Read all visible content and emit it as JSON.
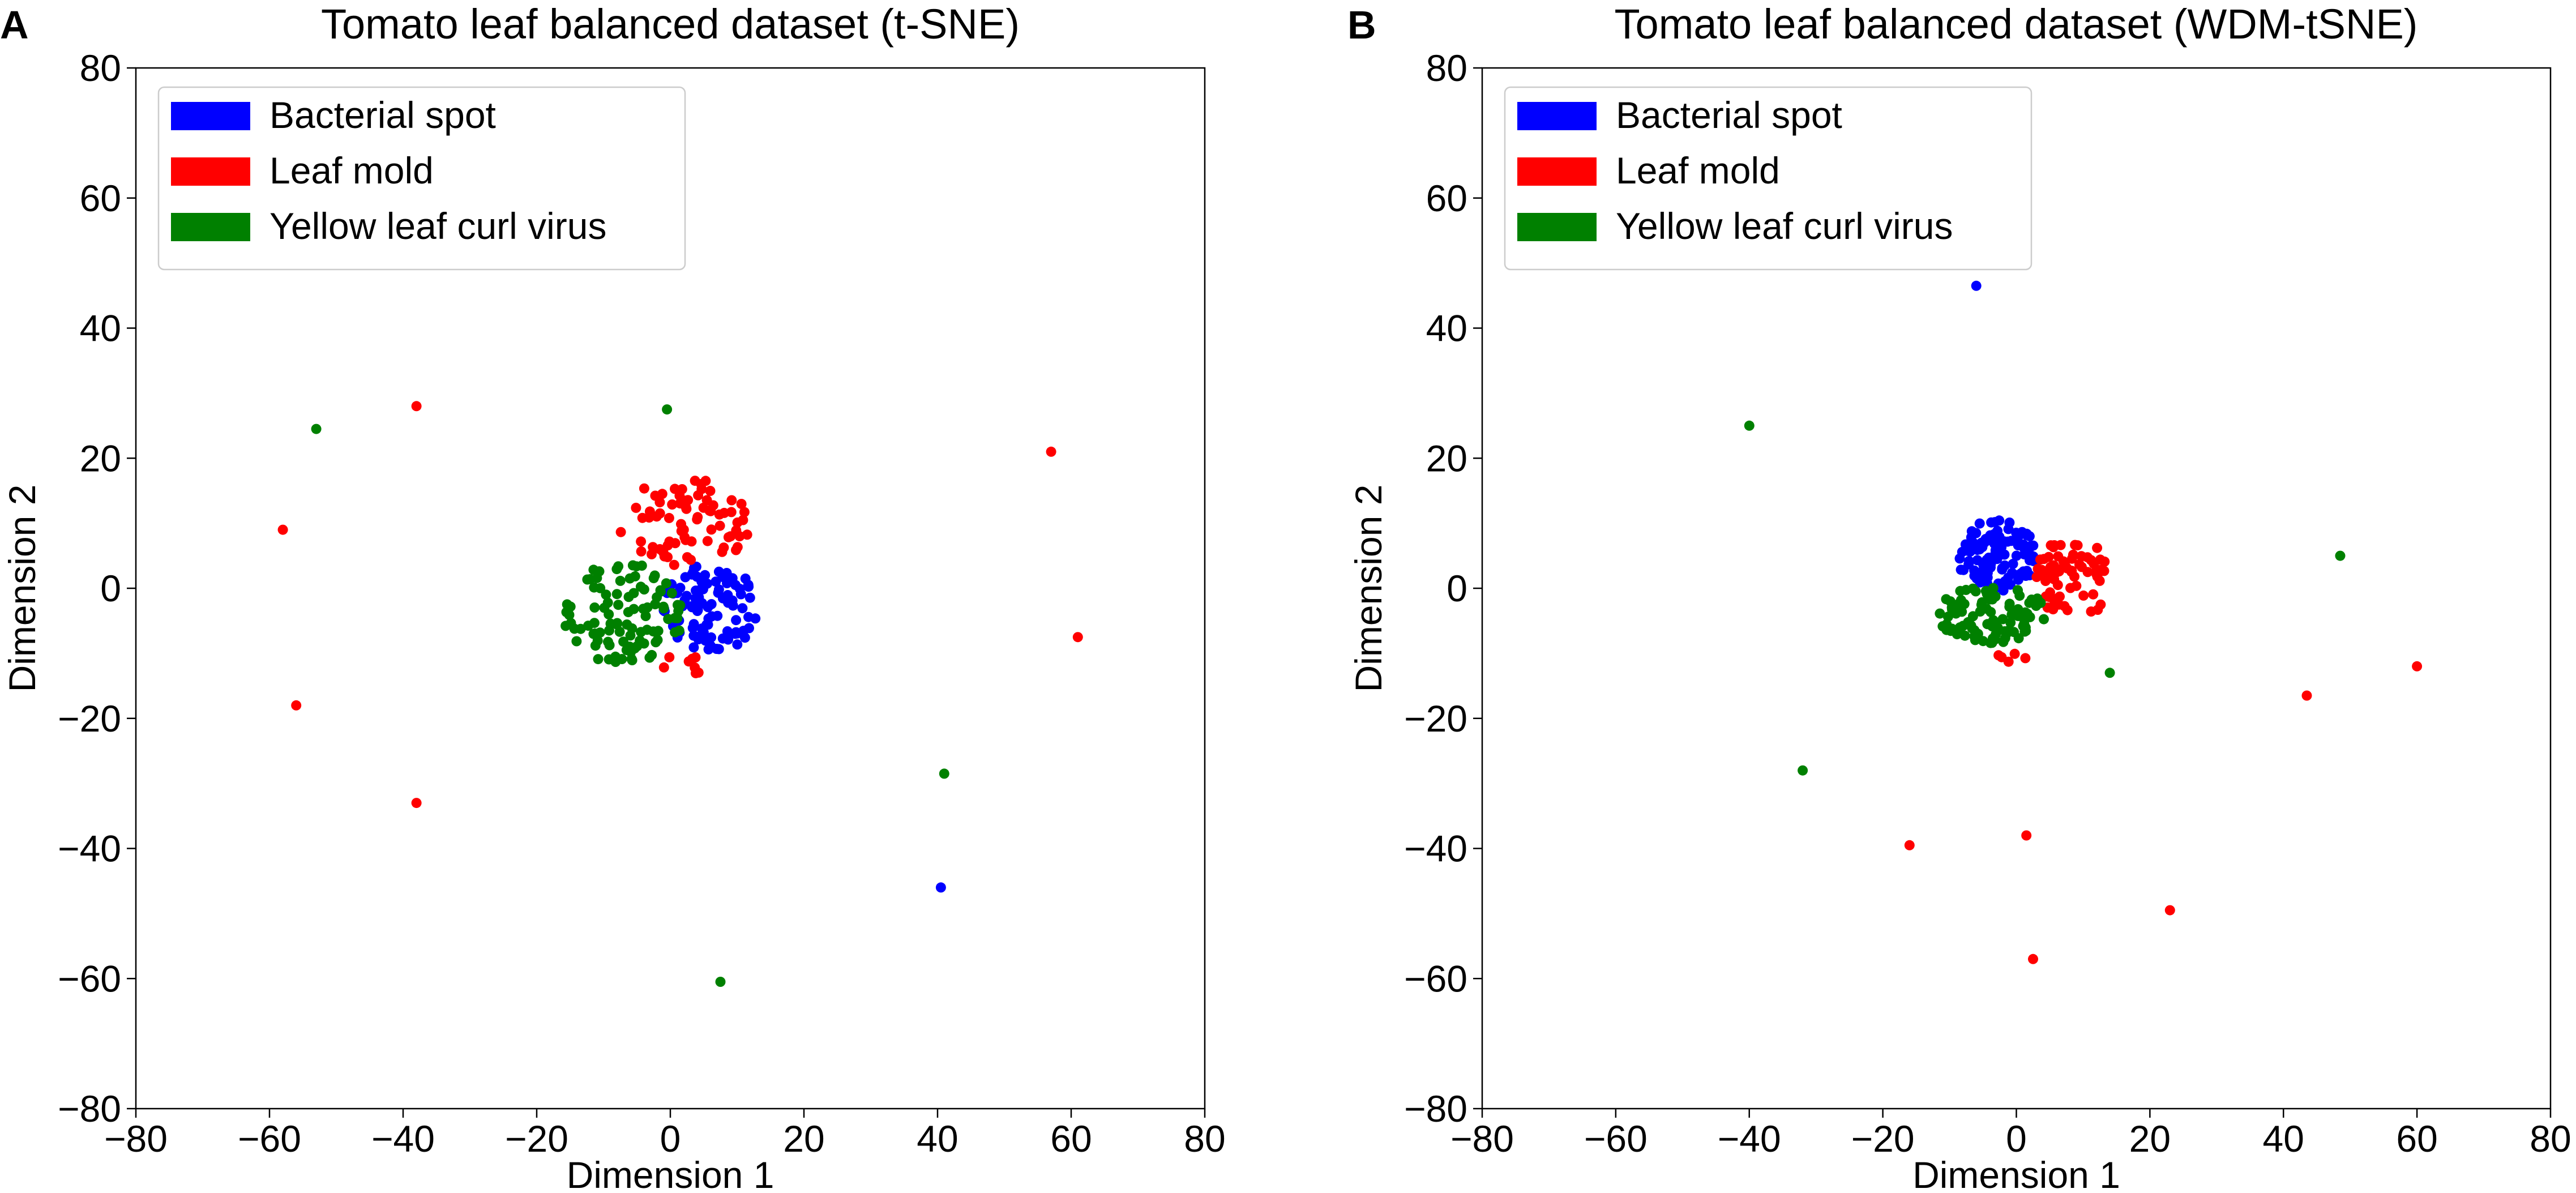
{
  "chart_data": [
    {
      "panel_letter": "A",
      "type": "scatter",
      "title": "Tomato leaf balanced dataset (t-SNE)",
      "xlabel": "Dimension 1",
      "ylabel": "Dimension 2",
      "xlim": [
        -80,
        80
      ],
      "ylim": [
        -80,
        80
      ],
      "xticks": [
        -80,
        -60,
        -40,
        -20,
        0,
        20,
        40,
        60,
        80
      ],
      "yticks": [
        -80,
        -60,
        -40,
        -20,
        0,
        20,
        40,
        60,
        80
      ],
      "tick_labels": [
        "−80",
        "−60",
        "−40",
        "−20",
        "0",
        "20",
        "40",
        "60",
        "80"
      ],
      "grid": false,
      "legend_position": "top-left",
      "series": [
        {
          "name": "Bacterial spot",
          "color": "#0000ff",
          "clusters": [
            {
              "cx": 6,
              "cy": -3,
              "rx": 7,
              "ry": 7,
              "n": 95
            }
          ],
          "outliers": [
            [
              40.5,
              -46
            ]
          ]
        },
        {
          "name": "Leaf mold",
          "color": "#ff0000",
          "clusters": [
            {
              "cx": 2,
              "cy": 10,
              "rx": 10,
              "ry": 7,
              "n": 75
            },
            {
              "cx": 2,
              "cy": -12,
              "rx": 3,
              "ry": 2,
              "n": 8
            }
          ],
          "outliers": [
            [
              -38,
              28
            ],
            [
              -58,
              9
            ],
            [
              -56,
              -18
            ],
            [
              -38,
              -33
            ],
            [
              57,
              21
            ],
            [
              61,
              -7.5
            ]
          ]
        },
        {
          "name": "Yellow leaf curl virus",
          "color": "#008000",
          "clusters": [
            {
              "cx": -7,
              "cy": -4,
              "rx": 9,
              "ry": 8,
              "n": 100
            }
          ],
          "outliers": [
            [
              -53,
              24.5
            ],
            [
              -0.5,
              27.5
            ],
            [
              41,
              -28.5
            ],
            [
              7.5,
              -60.5
            ]
          ]
        }
      ]
    },
    {
      "panel_letter": "B",
      "type": "scatter",
      "title": "Tomato leaf balanced dataset (WDM-tSNE)",
      "xlabel": "Dimension 1",
      "ylabel": "Dimension 2",
      "xlim": [
        -80,
        80
      ],
      "ylim": [
        -80,
        80
      ],
      "xticks": [
        -80,
        -60,
        -40,
        -20,
        0,
        20,
        40,
        60,
        80
      ],
      "yticks": [
        -80,
        -60,
        -40,
        -20,
        0,
        20,
        40,
        60,
        80
      ],
      "tick_labels": [
        "−80",
        "−60",
        "−40",
        "−20",
        "0",
        "20",
        "40",
        "60",
        "80"
      ],
      "grid": false,
      "legend_position": "top-left",
      "series": [
        {
          "name": "Bacterial spot",
          "color": "#0000ff",
          "clusters": [
            {
              "cx": -3,
              "cy": 5,
              "rx": 6,
              "ry": 5.5,
              "n": 110
            }
          ],
          "outliers": [
            [
              -6,
              46.5
            ]
          ]
        },
        {
          "name": "Leaf mold",
          "color": "#ff0000",
          "clusters": [
            {
              "cx": 8.5,
              "cy": 1.5,
              "rx": 5.5,
              "ry": 6.5,
              "n": 70
            },
            {
              "cx": -1,
              "cy": -10.5,
              "rx": 2.5,
              "ry": 0.8,
              "n": 5
            }
          ],
          "outliers": [
            [
              -16,
              -39.5
            ],
            [
              1.5,
              -38
            ],
            [
              2.5,
              -57
            ],
            [
              23,
              -49.5
            ],
            [
              43.5,
              -16.5
            ],
            [
              60,
              -12
            ]
          ]
        },
        {
          "name": "Yellow leaf curl virus",
          "color": "#008000",
          "clusters": [
            {
              "cx": -4,
              "cy": -4,
              "rx": 8.5,
              "ry": 4.5,
              "n": 95
            }
          ],
          "outliers": [
            [
              -40,
              25
            ],
            [
              48.5,
              5
            ],
            [
              14,
              -13
            ],
            [
              -32,
              -28
            ]
          ]
        }
      ]
    }
  ]
}
